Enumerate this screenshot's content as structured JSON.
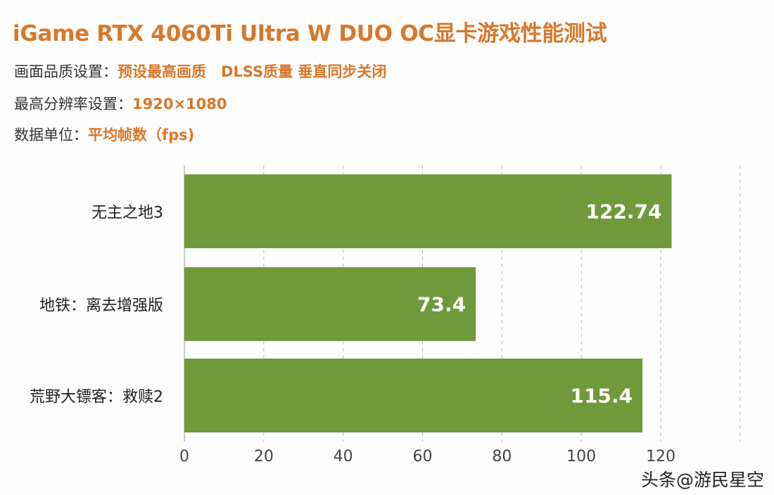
{
  "title": "iGame RTX 4060Ti Ultra W DUO OC显卡游戏性能测试",
  "info": [
    {
      "label": "画面品质设置：",
      "value": "预设最高画质　DLSS质量 垂直同步关闭"
    },
    {
      "label": "最高分辨率设置：",
      "value": "1920×1080"
    },
    {
      "label": "数据单位：",
      "value": "平均帧数（fps)"
    }
  ],
  "watermark": "头条@游民星空",
  "colors": {
    "bar": "#6e9a3a",
    "accent": "#d9772a"
  },
  "chart_data": {
    "type": "bar",
    "orientation": "horizontal",
    "categories": [
      "无主之地3",
      "地铁：离去增强版",
      "荒野大镖客：救赎2"
    ],
    "values": [
      122.74,
      73.4,
      115.4
    ],
    "value_labels": [
      "122.74",
      "73.4",
      "115.4"
    ],
    "xlim": [
      0,
      140
    ],
    "xticks": [
      "0",
      "20",
      "40",
      "60",
      "80",
      "100",
      "120"
    ],
    "grid": "vertical dashed"
  }
}
